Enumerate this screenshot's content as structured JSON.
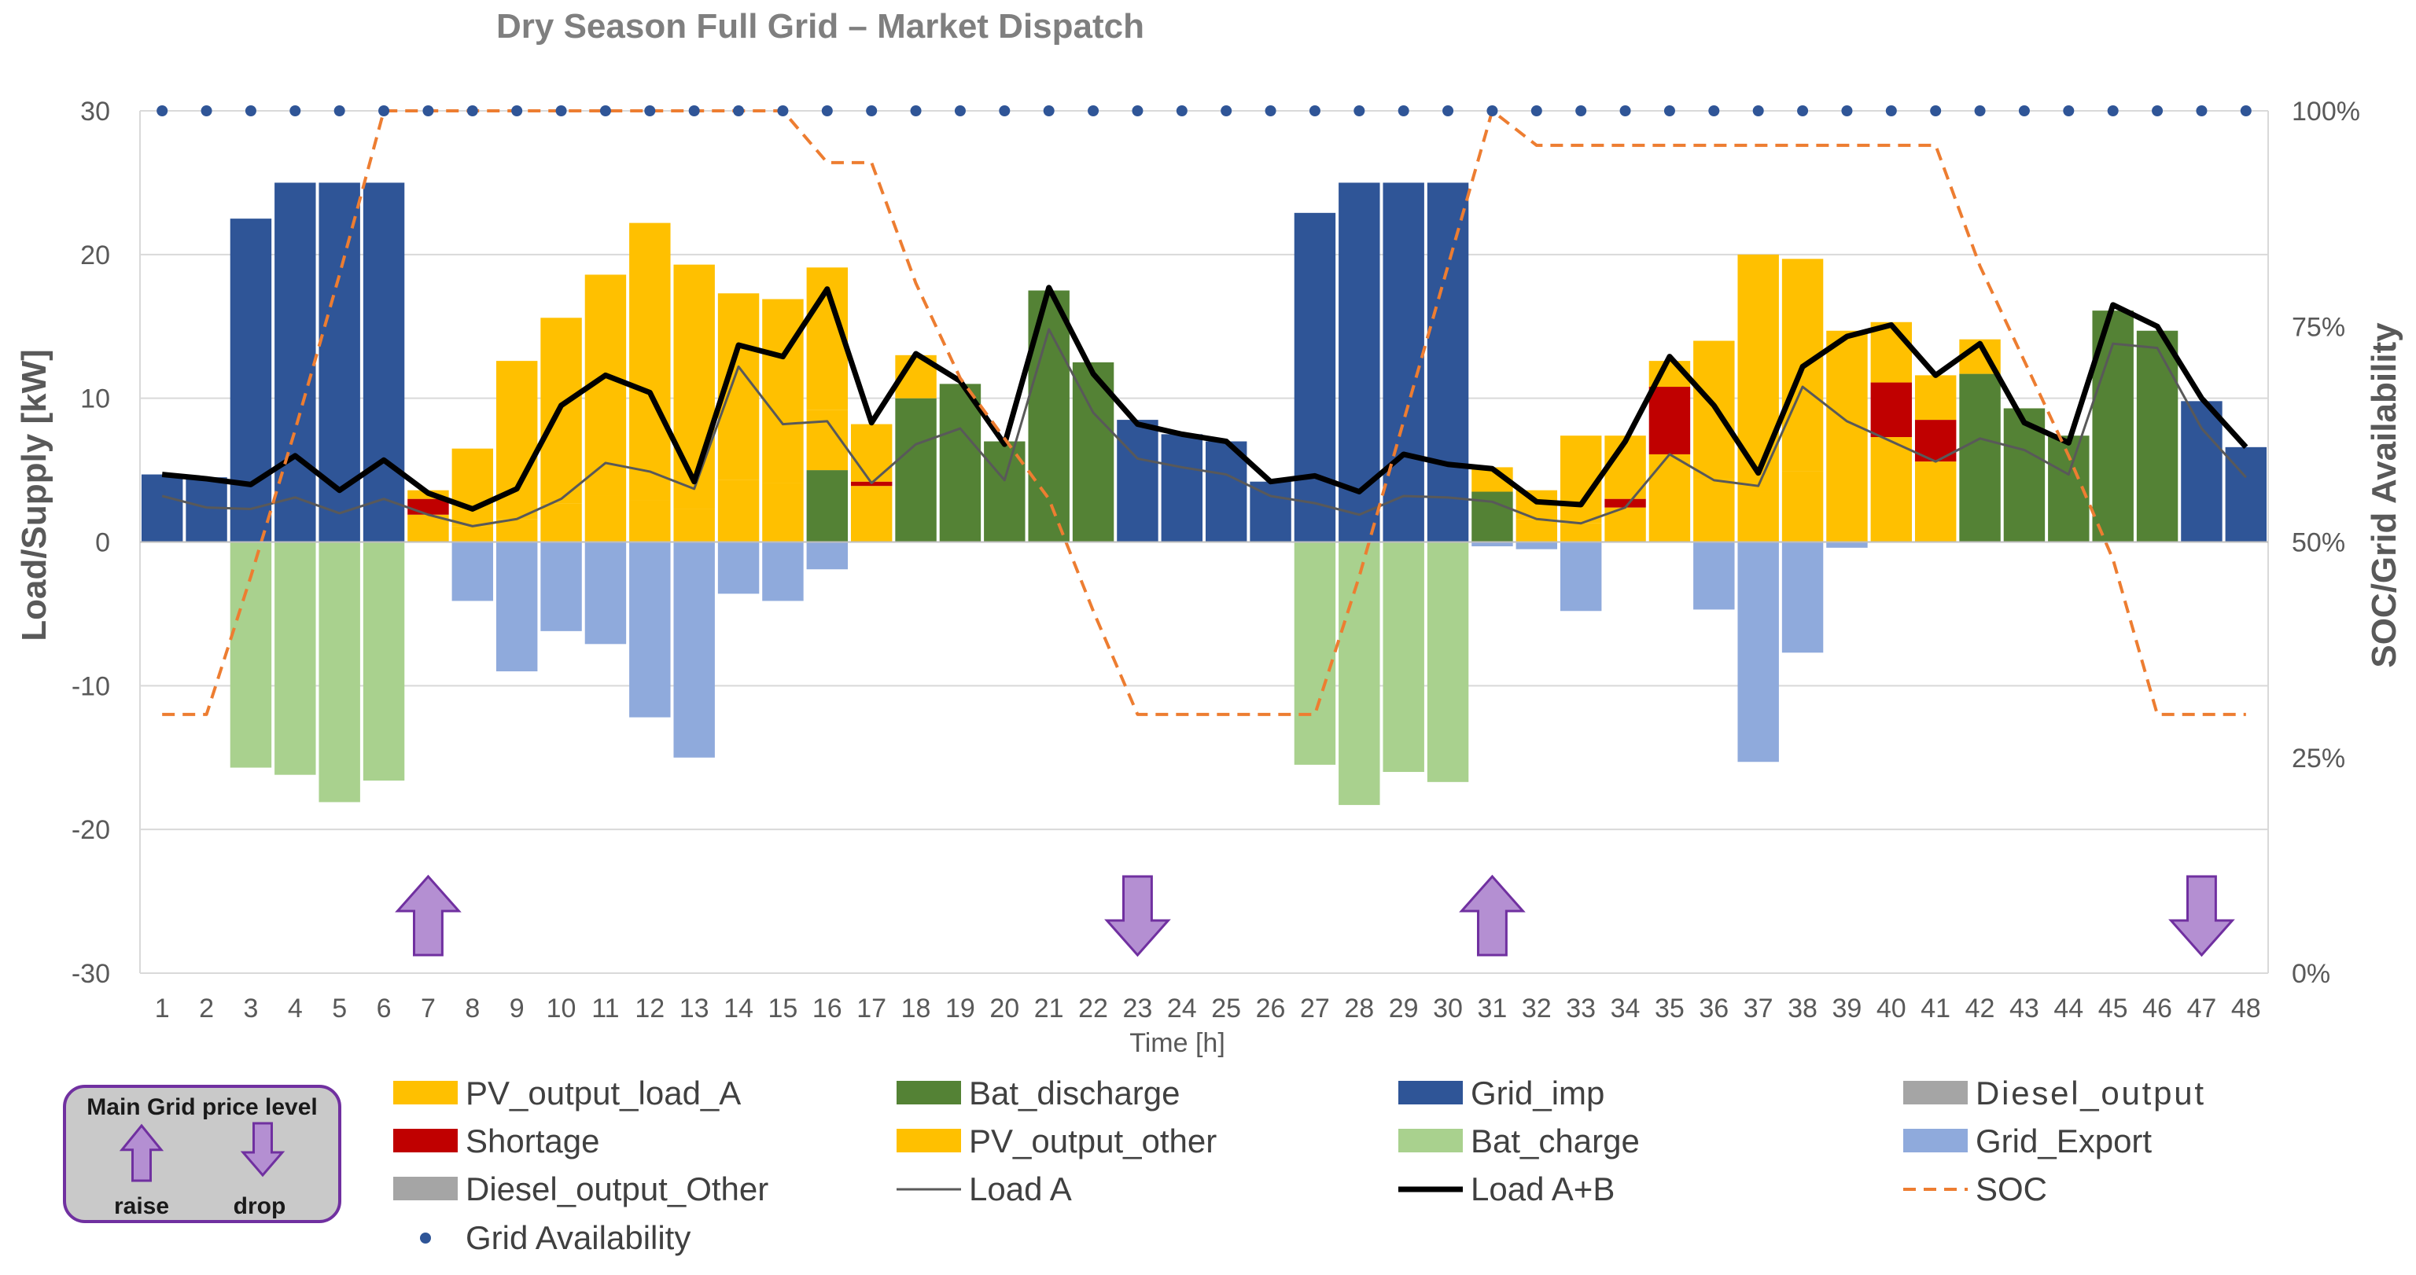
{
  "chart_data": {
    "type": "bar",
    "title": "Dry Season Full Grid – Market Dispatch",
    "xlabel": "Time [h]",
    "ylabel": "Load/Supply [kW]",
    "ylabel_right": "SOC/Grid Availability",
    "ylim": [
      -30,
      30
    ],
    "ylim_right": [
      0,
      1
    ],
    "y_ticks": [
      "30",
      "20",
      "10",
      "0",
      "-10",
      "-20",
      "-30"
    ],
    "y_right_ticks": [
      "100%",
      "75%",
      "50%",
      "25%",
      "0%"
    ],
    "grid": "horizontal",
    "x": [
      1,
      2,
      3,
      4,
      5,
      6,
      7,
      8,
      9,
      10,
      11,
      12,
      13,
      14,
      15,
      16,
      17,
      18,
      19,
      20,
      21,
      22,
      23,
      24,
      25,
      26,
      27,
      28,
      29,
      30,
      31,
      32,
      33,
      34,
      35,
      36,
      37,
      38,
      39,
      40,
      41,
      42,
      43,
      44,
      45,
      46,
      47,
      48
    ],
    "stacked_series": [
      {
        "name": "Bat_discharge",
        "color": "#548235",
        "values": [
          0,
          0,
          0,
          0,
          0,
          0,
          0,
          0,
          0,
          0,
          0,
          0,
          0,
          0,
          0,
          5,
          0,
          10,
          11,
          7,
          17.5,
          12.5,
          0,
          0,
          0,
          0,
          0,
          0,
          0,
          0,
          3.5,
          0,
          0,
          0,
          0,
          0,
          0,
          0,
          0,
          0,
          0,
          11.7,
          9.3,
          7.4,
          16.1,
          14.7,
          0,
          0
        ]
      },
      {
        "name": "Grid_imp",
        "color": "#2f5597",
        "values": [
          4.7,
          4.5,
          22.5,
          25,
          25,
          25,
          0,
          0,
          0,
          0,
          0,
          0,
          0,
          0,
          0,
          0,
          0,
          0,
          0,
          0,
          0,
          0,
          8.5,
          7.5,
          7,
          4.2,
          22.9,
          25,
          25,
          25,
          0,
          0,
          0,
          0,
          0,
          0,
          0,
          0,
          0,
          0,
          0,
          0,
          0,
          0,
          0,
          0,
          9.8,
          6.6
        ]
      },
      {
        "name": "PV_output_load_A",
        "color": "#ffc000",
        "values": [
          0,
          0,
          0,
          0,
          0,
          0,
          1.9,
          1.1,
          1.6,
          2.7,
          3.2,
          2.9,
          2.3,
          4.3,
          4.1,
          4.2,
          3.9,
          3,
          0,
          0,
          0,
          0,
          0,
          0,
          0,
          0,
          0,
          0,
          0,
          0,
          1.7,
          1.6,
          1.3,
          2.4,
          6.1,
          4.4,
          3.5,
          4.9,
          0,
          7.3,
          5.6,
          2.4,
          0,
          0,
          0,
          0,
          0,
          0
        ]
      },
      {
        "name": "Shortage",
        "color": "#c00000",
        "values": [
          0,
          0,
          0,
          0,
          0,
          0,
          1.1,
          0,
          0,
          0,
          0,
          0,
          0,
          0,
          0,
          0,
          0.3,
          0,
          0,
          0,
          0,
          0,
          0,
          0,
          0,
          0,
          0,
          0,
          0,
          0,
          0,
          0,
          0,
          0.6,
          4.7,
          0,
          0,
          0,
          0,
          3.8,
          2.9,
          0,
          0,
          0,
          0,
          0,
          0,
          0
        ]
      },
      {
        "name": "PV_output_other",
        "color": "#ffc000",
        "values": [
          0,
          0,
          0,
          0,
          0,
          0,
          0.6,
          5.4,
          11,
          12.9,
          15.4,
          19.3,
          17,
          13,
          12.8,
          9.9,
          4,
          0,
          0,
          0,
          0,
          0,
          0,
          0,
          0,
          0,
          0,
          0,
          0,
          0,
          0,
          2,
          6.1,
          4.4,
          1.8,
          9.6,
          16.5,
          14.8,
          14.7,
          4.2,
          3.1,
          0,
          0,
          0,
          0,
          0,
          0,
          0
        ]
      },
      {
        "name": "Bat_charge",
        "color": "#a9d18e",
        "values": [
          0,
          0,
          -15.7,
          -16.2,
          -18.1,
          -16.6,
          0,
          0,
          0,
          0,
          0,
          0,
          0,
          0,
          0,
          0,
          0,
          0,
          0,
          0,
          0,
          0,
          0,
          0,
          0,
          0,
          -15.5,
          -18.3,
          -16,
          -16.7,
          0,
          0,
          0,
          0,
          0,
          0,
          0,
          0,
          0,
          0,
          0,
          0,
          0,
          0,
          0,
          0,
          0,
          0
        ]
      },
      {
        "name": "Grid_Export",
        "color": "#8faadc",
        "values": [
          0,
          0,
          0,
          0,
          0,
          0,
          0,
          -4.1,
          -9,
          -6.2,
          -7.1,
          -12.2,
          -15,
          -3.6,
          -4.1,
          -1.9,
          0,
          0,
          0,
          0,
          0,
          0,
          0,
          0,
          0,
          0,
          0,
          0,
          0,
          0,
          -0.3,
          -0.5,
          -4.8,
          0,
          0,
          -4.7,
          -15.3,
          -7.7,
          -0.4,
          0,
          0,
          0,
          0,
          0,
          0,
          0,
          0,
          0
        ]
      },
      {
        "name": "Diesel_output",
        "color": "#a5a5a5",
        "values": []
      },
      {
        "name": "Diesel_output_Other",
        "color": "#a5a5a5",
        "values": []
      }
    ],
    "line_series": [
      {
        "name": "Load A",
        "color": "#595959",
        "axis": "left",
        "values": [
          3.2,
          2.4,
          2.3,
          3.1,
          2,
          3,
          1.9,
          1.1,
          1.6,
          3,
          5.5,
          4.9,
          3.7,
          12.2,
          8.2,
          8.4,
          4.1,
          6.8,
          7.9,
          4.3,
          14.8,
          9,
          5.8,
          5.2,
          4.7,
          3.2,
          2.7,
          1.9,
          3.2,
          3.1,
          2.8,
          1.6,
          1.3,
          2.4,
          6.1,
          4.3,
          3.9,
          10.8,
          8.4,
          7,
          5.6,
          7.2,
          6.4,
          4.7,
          13.8,
          13.5,
          7.9,
          4.5
        ]
      },
      {
        "name": "Load A+B",
        "color": "#000000",
        "axis": "left",
        "values": [
          4.7,
          4.4,
          4,
          6,
          3.6,
          5.7,
          3.4,
          2.3,
          3.7,
          9.5,
          11.6,
          10.4,
          4.2,
          13.7,
          12.9,
          17.6,
          8.3,
          13.1,
          11.2,
          6.8,
          17.7,
          11.7,
          8.2,
          7.5,
          7,
          4.2,
          4.6,
          3.5,
          6.1,
          5.4,
          5.1,
          2.8,
          2.6,
          7,
          12.9,
          9.5,
          4.8,
          12.2,
          14.3,
          15.1,
          11.6,
          13.8,
          8.3,
          6.9,
          16.5,
          15,
          10,
          6.6
        ]
      },
      {
        "name": "SOC",
        "color": "#ed7d31",
        "axis": "right",
        "dashed": true,
        "values": [
          0.3,
          0.3,
          0.46,
          0.63,
          0.81,
          1,
          1,
          1,
          1,
          1,
          1,
          1,
          1,
          1,
          1,
          0.94,
          0.94,
          0.8,
          0.69,
          0.62,
          0.55,
          0.42,
          0.3,
          0.3,
          0.3,
          0.3,
          0.3,
          0.46,
          0.64,
          0.82,
          1,
          0.96,
          0.96,
          0.96,
          0.96,
          0.96,
          0.96,
          0.96,
          0.96,
          0.96,
          0.96,
          0.82,
          0.71,
          0.6,
          0.48,
          0.3,
          0.3,
          0.3
        ]
      }
    ],
    "grid_availability": {
      "name": "Grid Availability",
      "color": "#2f5597",
      "axis": "right",
      "values": [
        1,
        1,
        1,
        1,
        1,
        1,
        1,
        1,
        1,
        1,
        1,
        1,
        1,
        1,
        1,
        1,
        1,
        1,
        1,
        1,
        1,
        1,
        1,
        1,
        1,
        1,
        1,
        1,
        1,
        1,
        1,
        1,
        1,
        1,
        1,
        1,
        1,
        1,
        1,
        1,
        1,
        1,
        1,
        1,
        1,
        1,
        1,
        1
      ]
    },
    "price_signals": [
      {
        "hour": 7,
        "direction": "raise"
      },
      {
        "hour": 23,
        "direction": "drop"
      },
      {
        "hour": 31,
        "direction": "raise"
      },
      {
        "hour": 47,
        "direction": "drop"
      }
    ],
    "legend_position": "bottom",
    "legend": [
      "PV_output_load_A",
      "Bat_discharge",
      "Grid_imp",
      "Diesel_output",
      "Shortage",
      "PV_output_other",
      "Bat_charge",
      "Grid_Export",
      "Diesel_output_Other",
      "Load A",
      "Load A+B",
      "SOC",
      "Grid Availability"
    ],
    "price_box": {
      "title": "Main Grid price level",
      "raise_label": "raise",
      "drop_label": "drop"
    }
  }
}
